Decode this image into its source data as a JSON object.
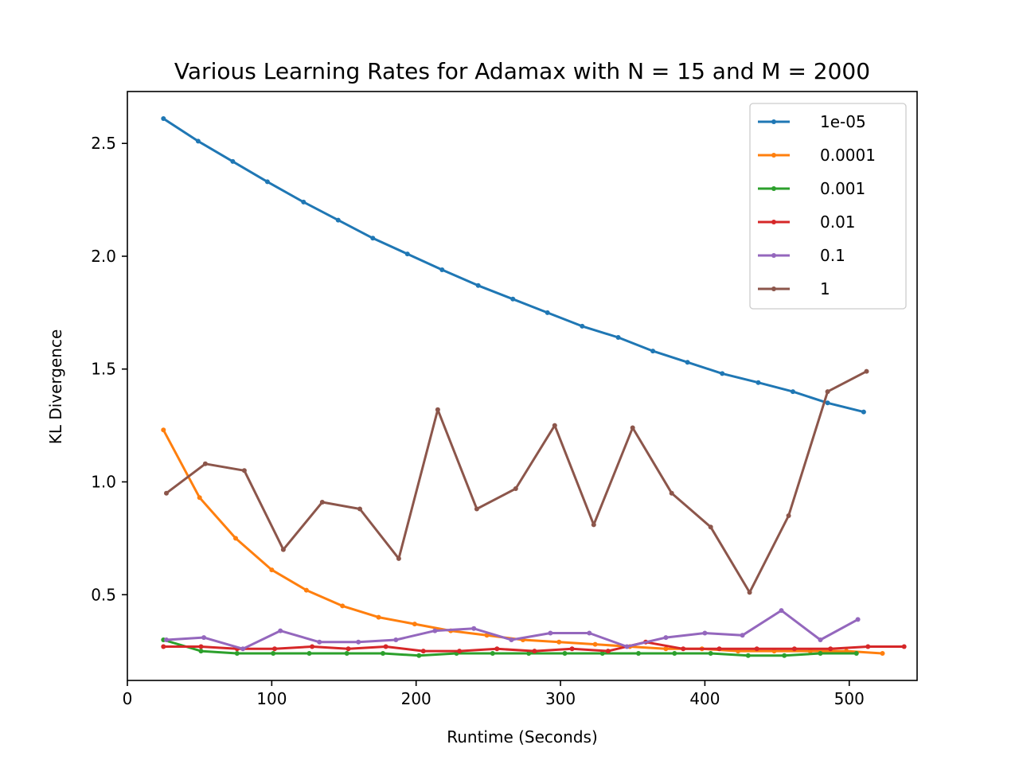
{
  "chart_data": {
    "type": "line",
    "title": "Various Learning Rates for Adamax with N = 15 and M = 2000",
    "xlabel": "Runtime (Seconds)",
    "ylabel": "KL Divergence",
    "xlim": [
      0,
      547
    ],
    "ylim": [
      0.12,
      2.73
    ],
    "xticks": [
      0,
      100,
      200,
      300,
      400,
      500
    ],
    "yticks": [
      0.5,
      1.0,
      1.5,
      2.0,
      2.5
    ],
    "xtick_labels": [
      "0",
      "100",
      "200",
      "300",
      "400",
      "500"
    ],
    "ytick_labels": [
      "0.5",
      "1.0",
      "1.5",
      "2.0",
      "2.5"
    ],
    "grid": false,
    "legend_position": "top-right",
    "series": [
      {
        "name": "1e-05",
        "color": "#1f77b4",
        "x": [
          25,
          49,
          73,
          97,
          122,
          146,
          170,
          194,
          218,
          243,
          267,
          291,
          315,
          340,
          364,
          388,
          412,
          437,
          461,
          485,
          510
        ],
        "y": [
          2.61,
          2.51,
          2.42,
          2.33,
          2.24,
          2.16,
          2.08,
          2.01,
          1.94,
          1.87,
          1.81,
          1.75,
          1.69,
          1.64,
          1.58,
          1.53,
          1.48,
          1.44,
          1.4,
          1.35,
          1.31
        ]
      },
      {
        "name": "0.0001",
        "color": "#ff7f0e",
        "x": [
          25,
          50,
          75,
          100,
          124,
          149,
          174,
          199,
          224,
          249,
          274,
          299,
          324,
          348,
          373,
          398,
          423,
          448,
          473,
          498,
          523
        ],
        "y": [
          1.23,
          0.93,
          0.75,
          0.61,
          0.52,
          0.45,
          0.4,
          0.37,
          0.34,
          0.32,
          0.3,
          0.29,
          0.28,
          0.27,
          0.26,
          0.26,
          0.25,
          0.25,
          0.25,
          0.25,
          0.24
        ]
      },
      {
        "name": "0.001",
        "color": "#2ca02c",
        "x": [
          25,
          51,
          76,
          101,
          126,
          152,
          177,
          202,
          228,
          253,
          278,
          303,
          329,
          354,
          379,
          404,
          430,
          455,
          480,
          505
        ],
        "y": [
          0.3,
          0.25,
          0.24,
          0.24,
          0.24,
          0.24,
          0.24,
          0.23,
          0.24,
          0.24,
          0.24,
          0.24,
          0.24,
          0.24,
          0.24,
          0.24,
          0.23,
          0.23,
          0.24,
          0.24
        ]
      },
      {
        "name": "0.01",
        "color": "#d62728",
        "x": [
          25,
          51,
          76,
          102,
          128,
          153,
          179,
          205,
          230,
          256,
          282,
          308,
          333,
          359,
          385,
          410,
          436,
          462,
          487,
          513,
          538
        ],
        "y": [
          0.27,
          0.27,
          0.26,
          0.26,
          0.27,
          0.26,
          0.27,
          0.25,
          0.25,
          0.26,
          0.25,
          0.26,
          0.25,
          0.29,
          0.26,
          0.26,
          0.26,
          0.26,
          0.26,
          0.27,
          0.27
        ]
      },
      {
        "name": "0.1",
        "color": "#9467bd",
        "x": [
          27,
          53,
          80,
          106,
          133,
          160,
          186,
          213,
          240,
          266,
          293,
          320,
          346,
          373,
          400,
          426,
          453,
          480,
          506
        ],
        "y": [
          0.3,
          0.31,
          0.26,
          0.34,
          0.29,
          0.29,
          0.3,
          0.34,
          0.35,
          0.3,
          0.33,
          0.33,
          0.27,
          0.31,
          0.33,
          0.32,
          0.43,
          0.3,
          0.39
        ]
      },
      {
        "name": "1",
        "color": "#8c564b",
        "x": [
          27,
          54,
          81,
          108,
          135,
          161,
          188,
          215,
          242,
          269,
          296,
          323,
          350,
          377,
          404,
          431,
          458,
          485,
          512
        ],
        "y": [
          0.95,
          1.08,
          1.05,
          0.7,
          0.91,
          0.88,
          0.66,
          1.32,
          0.88,
          0.97,
          1.25,
          0.81,
          1.24,
          0.95,
          0.8,
          0.51,
          0.85,
          1.4,
          1.49
        ]
      }
    ]
  }
}
